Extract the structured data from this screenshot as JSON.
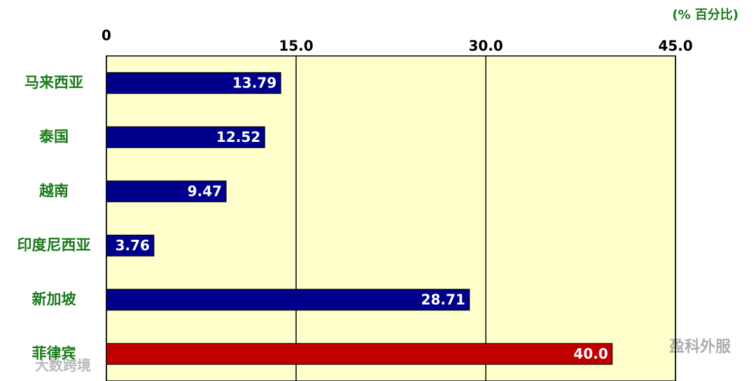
{
  "chart_data": {
    "type": "bar",
    "orientation": "horizontal",
    "unit_label": "(% 百分比)",
    "categories": [
      "马来西亚",
      "泰国",
      "越南",
      "印度尼西亚",
      "新加坡",
      "菲律宾"
    ],
    "values": [
      13.79,
      12.52,
      9.47,
      3.76,
      28.71,
      40.0
    ],
    "value_labels": [
      "13.79",
      "12.52",
      "9.47",
      "3.76",
      "28.71",
      "40.0"
    ],
    "colors": [
      "#00008b",
      "#00008b",
      "#00008b",
      "#00008b",
      "#00008b",
      "#c00000"
    ],
    "xlim": [
      0,
      45
    ],
    "xticks": [
      0,
      {
        "value": 15,
        "label": "15.0"
      },
      {
        "value": 30,
        "label": "30.0"
      },
      {
        "value": 45,
        "label": "45.0"
      }
    ],
    "grid": true
  },
  "watermarks": [
    "盈科外服",
    "大数跨境"
  ]
}
